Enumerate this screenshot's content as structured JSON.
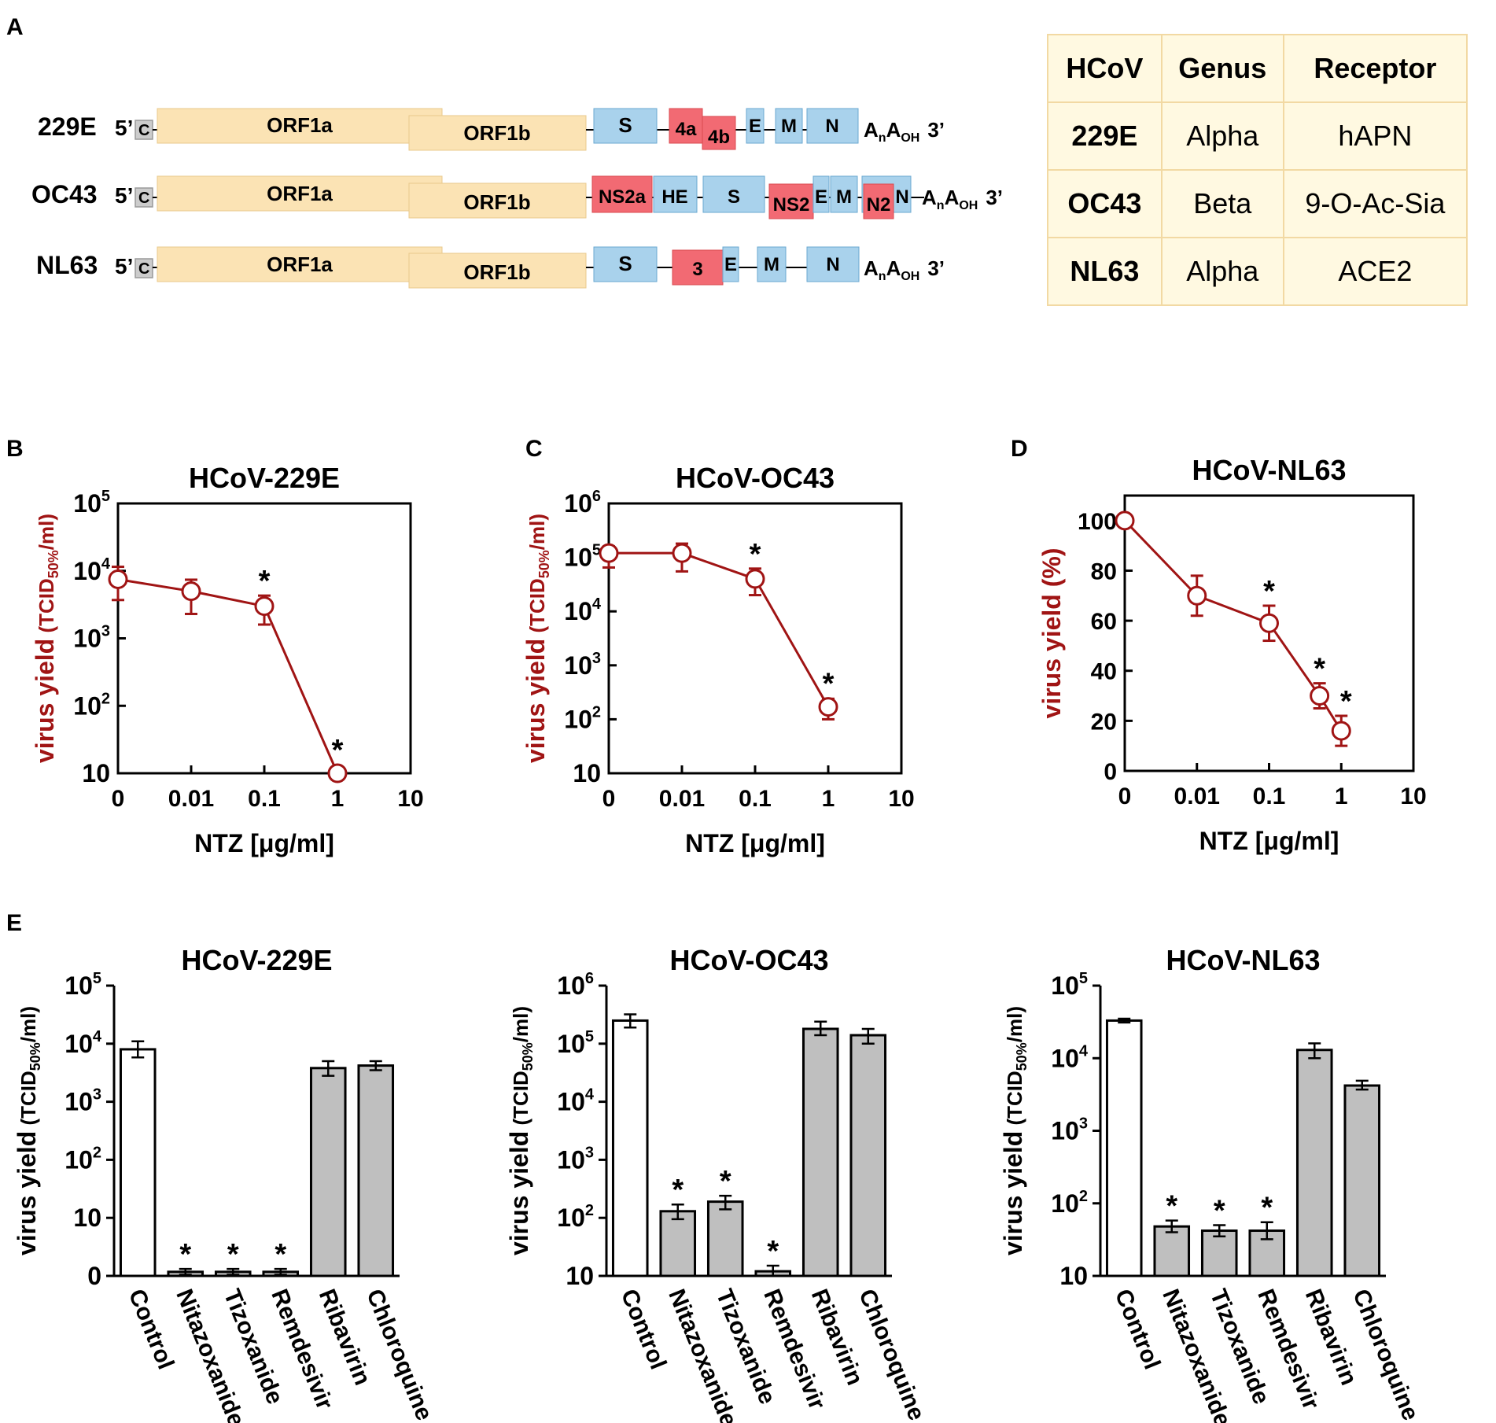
{
  "panel_labels": {
    "a": "A",
    "b": "B",
    "c": "C",
    "d": "D",
    "e": "E"
  },
  "genomes": [
    {
      "name": "229E",
      "five": "5’",
      "cap": "C",
      "orf1a": "ORF1a",
      "orf1b": "ORF1b",
      "genes": [
        {
          "label": "S",
          "kind": "structural"
        },
        {
          "label": "4a",
          "kind": "accessory"
        },
        {
          "label": "4b",
          "kind": "accessory"
        },
        {
          "label": "E",
          "kind": "structural"
        },
        {
          "label": "M",
          "kind": "structural"
        },
        {
          "label": "N",
          "kind": "structural"
        }
      ],
      "tail_a": "A",
      "tail_n": "n",
      "tail_a2": "A",
      "tail_oh": "OH",
      "three": "3’"
    },
    {
      "name": "OC43",
      "five": "5’",
      "cap": "C",
      "orf1a": "ORF1a",
      "orf1b": "ORF1b",
      "genes": [
        {
          "label": "NS2a",
          "kind": "accessory"
        },
        {
          "label": "HE",
          "kind": "structural"
        },
        {
          "label": "S",
          "kind": "structural"
        },
        {
          "label": "NS2",
          "kind": "accessory"
        },
        {
          "label": "E",
          "kind": "structural"
        },
        {
          "label": "M",
          "kind": "structural"
        },
        {
          "label": "N2",
          "kind": "accessory"
        },
        {
          "label": "N",
          "kind": "structural"
        }
      ],
      "tail_a": "A",
      "tail_n": "n",
      "tail_a2": "A",
      "tail_oh": "OH",
      "three": "3’"
    },
    {
      "name": "NL63",
      "five": "5’",
      "cap": "C",
      "orf1a": "ORF1a",
      "orf1b": "ORF1b",
      "genes": [
        {
          "label": "S",
          "kind": "structural"
        },
        {
          "label": "3",
          "kind": "accessory"
        },
        {
          "label": "E",
          "kind": "structural"
        },
        {
          "label": "M",
          "kind": "structural"
        },
        {
          "label": "N",
          "kind": "structural"
        }
      ],
      "tail_a": "A",
      "tail_n": "n",
      "tail_a2": "A",
      "tail_oh": "OH",
      "three": "3’"
    }
  ],
  "table": {
    "headers": [
      "HCoV",
      "Genus",
      "Receptor"
    ],
    "rows": [
      [
        "229E",
        "Alpha",
        "hAPN"
      ],
      [
        "OC43",
        "Beta",
        "9-O-Ac-Sia"
      ],
      [
        "NL63",
        "Alpha",
        "ACE2"
      ]
    ]
  },
  "colors": {
    "orf": "#fbe3b4",
    "orf_border": "#e8c98c",
    "structural": "#a9d2ec",
    "structural_border": "#6aa8d0",
    "accessory": "#f26a73",
    "accessory_border": "#d9494f",
    "cap": "#cccccc",
    "line_series": "#a01414",
    "bar_control": "#ffffff",
    "bar_drug": "#bfbfbf",
    "table_bg": "#fff9e1"
  },
  "chart_data": [
    {
      "panel": "B",
      "type": "line",
      "title": "HCoV-229E",
      "xlabel": "NTZ [μg/ml]",
      "ylabel_main": "virus yield",
      "ylabel_unit_pre": "(TCID",
      "ylabel_unit_sub": "50%",
      "ylabel_unit_post": "/ml)",
      "yscale": "log",
      "ylim": [
        10,
        100000
      ],
      "ytick_labels": [
        {
          "base": "10",
          "exp": ""
        },
        {
          "base": "10",
          "exp": "2"
        },
        {
          "base": "10",
          "exp": "3"
        },
        {
          "base": "10",
          "exp": "4"
        },
        {
          "base": "10",
          "exp": "5"
        }
      ],
      "xtick_labels": [
        "0",
        "0.01",
        "0.1",
        "1",
        "10"
      ],
      "x": [
        0,
        0.01,
        0.1,
        1
      ],
      "y": [
        7500,
        5000,
        3000,
        10
      ],
      "err_low": [
        3700,
        2300,
        1600,
        10
      ],
      "err_high": [
        11500,
        7400,
        4300,
        10
      ],
      "significant": [
        false,
        false,
        true,
        true
      ],
      "star": "*"
    },
    {
      "panel": "C",
      "type": "line",
      "title": "HCoV-OC43",
      "xlabel": "NTZ [μg/ml]",
      "ylabel_main": "virus yield",
      "ylabel_unit_pre": "(TCID",
      "ylabel_unit_sub": "50%",
      "ylabel_unit_post": "/ml)",
      "yscale": "log",
      "ylim": [
        10,
        1000000
      ],
      "ytick_labels": [
        {
          "base": "10",
          "exp": ""
        },
        {
          "base": "10",
          "exp": "2"
        },
        {
          "base": "10",
          "exp": "3"
        },
        {
          "base": "10",
          "exp": "4"
        },
        {
          "base": "10",
          "exp": "5"
        },
        {
          "base": "10",
          "exp": "6"
        }
      ],
      "xtick_labels": [
        "0",
        "0.01",
        "0.1",
        "1",
        "10"
      ],
      "x": [
        0,
        0.01,
        0.1,
        1
      ],
      "y": [
        120000,
        120000,
        40000,
        170
      ],
      "err_low": [
        65000,
        55000,
        20000,
        100
      ],
      "err_high": [
        160000,
        180000,
        62000,
        240
      ],
      "significant": [
        false,
        false,
        true,
        true
      ],
      "star": "*"
    },
    {
      "panel": "D",
      "type": "line",
      "title": "HCoV-NL63",
      "xlabel": "NTZ [μg/ml]",
      "ylabel_main": "virus yield (%)",
      "yscale": "linear",
      "ylim": [
        0,
        110
      ],
      "ytick_labels": [
        "0",
        "20",
        "40",
        "60",
        "80",
        "100"
      ],
      "xtick_labels": [
        "0",
        "0.01",
        "0.1",
        "1",
        "10"
      ],
      "x": [
        0,
        0.01,
        0.1,
        0.5,
        1
      ],
      "y": [
        100,
        70,
        59,
        30,
        16
      ],
      "err_low": [
        100,
        62,
        52,
        25,
        10
      ],
      "err_high": [
        100,
        78,
        66,
        35,
        22
      ],
      "significant": [
        false,
        false,
        true,
        true,
        true
      ],
      "star": "*"
    },
    {
      "panel": "E1",
      "type": "bar",
      "title": "HCoV-229E",
      "ylabel_main": "virus yield",
      "ylabel_unit_pre": "(TCID",
      "ylabel_unit_sub": "50%",
      "ylabel_unit_post": "/ml)",
      "yscale": "log_with_zero",
      "ytick_labels": [
        {
          "base": "0",
          "exp": ""
        },
        {
          "base": "10",
          "exp": ""
        },
        {
          "base": "10",
          "exp": "2"
        },
        {
          "base": "10",
          "exp": "3"
        },
        {
          "base": "10",
          "exp": "4"
        },
        {
          "base": "10",
          "exp": "5"
        }
      ],
      "categories": [
        "Control",
        "Nitazoxanide",
        "Tizoxanide",
        "Remdesivir",
        "Ribavirin",
        "Chloroquine"
      ],
      "values": [
        8000,
        0.8,
        0.8,
        0.8,
        3800,
        4200
      ],
      "err_low": [
        5800,
        0.4,
        0.4,
        0.4,
        2800,
        3500
      ],
      "err_high": [
        11000,
        1.3,
        1.3,
        1.3,
        5000,
        5000
      ],
      "significant": [
        false,
        true,
        true,
        true,
        false,
        false
      ],
      "star": "*"
    },
    {
      "panel": "E2",
      "type": "bar",
      "title": "HCoV-OC43",
      "ylabel_main": "virus yield",
      "ylabel_unit_pre": "(TCID",
      "ylabel_unit_sub": "50%",
      "ylabel_unit_post": "/ml)",
      "yscale": "log",
      "ylim": [
        10,
        1000000
      ],
      "ytick_labels": [
        {
          "base": "10",
          "exp": ""
        },
        {
          "base": "10",
          "exp": "2"
        },
        {
          "base": "10",
          "exp": "3"
        },
        {
          "base": "10",
          "exp": "4"
        },
        {
          "base": "10",
          "exp": "5"
        },
        {
          "base": "10",
          "exp": "6"
        }
      ],
      "categories": [
        "Control",
        "Nitazoxanide",
        "Tizoxanide",
        "Remdesivir",
        "Ribavirin",
        "Chloroquine"
      ],
      "values": [
        250000,
        130,
        190,
        12,
        180000,
        140000
      ],
      "err_low": [
        190000,
        95,
        140,
        10,
        140000,
        100000
      ],
      "err_high": [
        320000,
        170,
        240,
        15,
        240000,
        180000
      ],
      "significant": [
        false,
        true,
        true,
        true,
        false,
        false
      ],
      "star": "*"
    },
    {
      "panel": "E3",
      "type": "bar",
      "title": "HCoV-NL63",
      "ylabel_main": "virus yield",
      "ylabel_unit_pre": "(TCID",
      "ylabel_unit_sub": "50%",
      "ylabel_unit_post": "/ml)",
      "yscale": "log",
      "ylim": [
        10,
        100000
      ],
      "ytick_labels": [
        {
          "base": "10",
          "exp": ""
        },
        {
          "base": "10",
          "exp": "2"
        },
        {
          "base": "10",
          "exp": "3"
        },
        {
          "base": "10",
          "exp": "4"
        },
        {
          "base": "10",
          "exp": "5"
        }
      ],
      "categories": [
        "Control",
        "Nitazoxanide",
        "Tizoxanide",
        "Remdesivir",
        "Ribavirin",
        "Chloroquine"
      ],
      "values": [
        33000,
        48,
        42,
        42,
        13000,
        4200
      ],
      "err_low": [
        31000,
        40,
        35,
        32,
        10000,
        3700
      ],
      "err_high": [
        35000,
        58,
        50,
        55,
        16000,
        4900
      ],
      "significant": [
        false,
        true,
        true,
        true,
        false,
        false
      ],
      "star": "*"
    }
  ]
}
